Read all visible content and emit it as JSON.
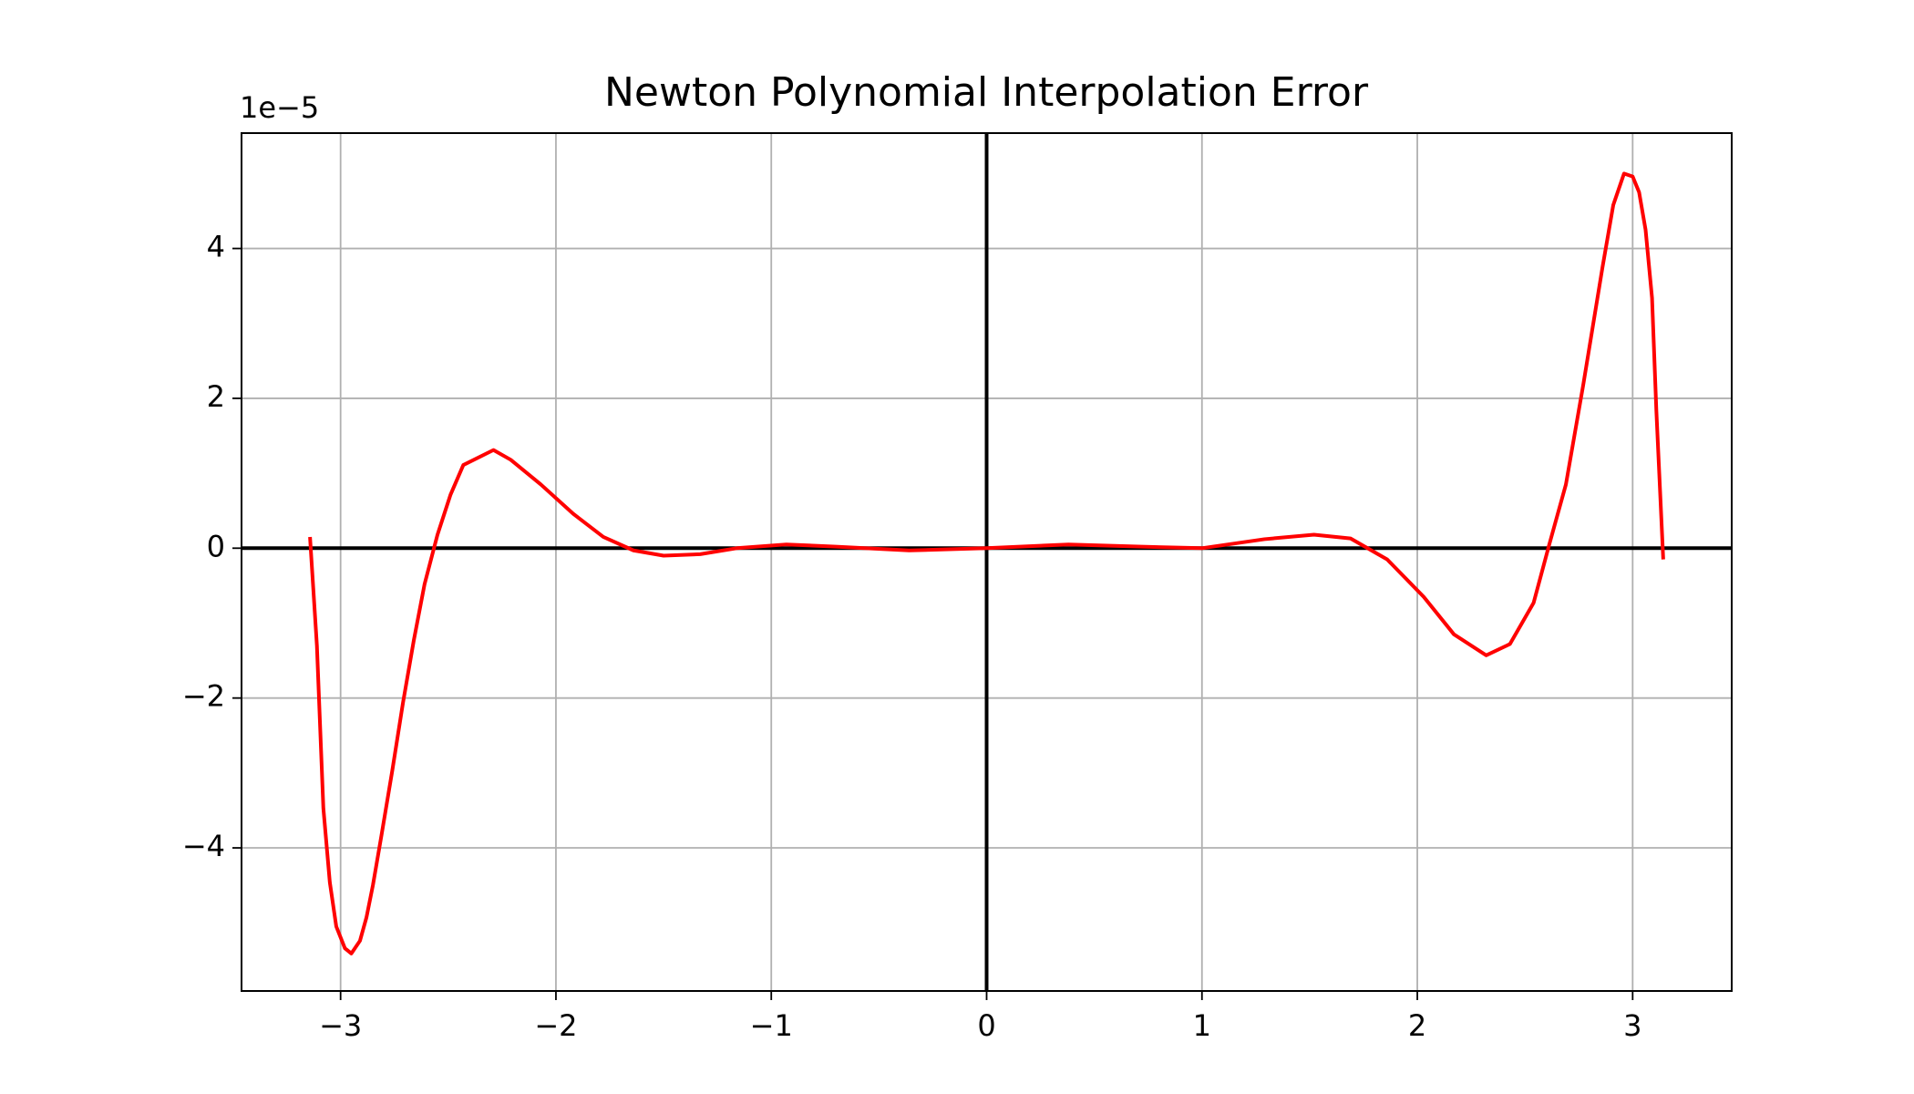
{
  "chart_data": {
    "type": "line",
    "title": "Newton Polynomial Interpolation Error",
    "y_offset_label": "1e−5",
    "x": [
      -3.142,
      -3.11,
      -3.08,
      -3.05,
      -3.02,
      -2.98,
      -2.95,
      -2.91,
      -2.88,
      -2.85,
      -2.81,
      -2.76,
      -2.71,
      -2.66,
      -2.61,
      -2.55,
      -2.49,
      -2.43,
      -2.29,
      -2.21,
      -2.07,
      -1.92,
      -1.78,
      -1.64,
      -1.5,
      -1.33,
      -1.16,
      -0.93,
      -0.7,
      -0.36,
      0,
      0.38,
      0.72,
      1.0,
      1.29,
      1.52,
      1.69,
      1.86,
      2.03,
      2.17,
      2.32,
      2.43,
      2.54,
      2.61,
      2.69,
      2.77,
      2.86,
      2.91,
      2.96,
      3.0,
      3.03,
      3.06,
      3.09,
      3.11,
      3.142
    ],
    "values": [
      0.15,
      -1.3,
      -3.47,
      -4.46,
      -5.05,
      -5.34,
      -5.41,
      -5.24,
      -4.93,
      -4.5,
      -3.83,
      -2.97,
      -2.06,
      -1.23,
      -0.48,
      0.18,
      0.71,
      1.11,
      1.31,
      1.18,
      0.85,
      0.46,
      0.15,
      -0.03,
      -0.1,
      -0.08,
      0,
      0.05,
      0.02,
      -0.03,
      0,
      0.05,
      0.02,
      0,
      0.12,
      0.18,
      0.13,
      -0.15,
      -0.65,
      -1.15,
      -1.43,
      -1.28,
      -0.73,
      0.02,
      0.85,
      2.17,
      3.75,
      4.58,
      5.0,
      4.96,
      4.75,
      4.25,
      3.34,
      1.84,
      -0.15
    ],
    "color": "#ff0000",
    "xlim": [
      -3.46,
      3.46
    ],
    "ylim": [
      -5.91,
      5.54
    ],
    "xticks": [
      {
        "value": -3,
        "label": "−3"
      },
      {
        "value": -2,
        "label": "−2"
      },
      {
        "value": -1,
        "label": "−1"
      },
      0,
      1,
      2,
      3
    ],
    "yticks": [
      {
        "value": -4,
        "label": "−4"
      },
      {
        "value": -2,
        "label": "−2"
      },
      0,
      2,
      4
    ],
    "grid": true,
    "zero_lines": true
  }
}
